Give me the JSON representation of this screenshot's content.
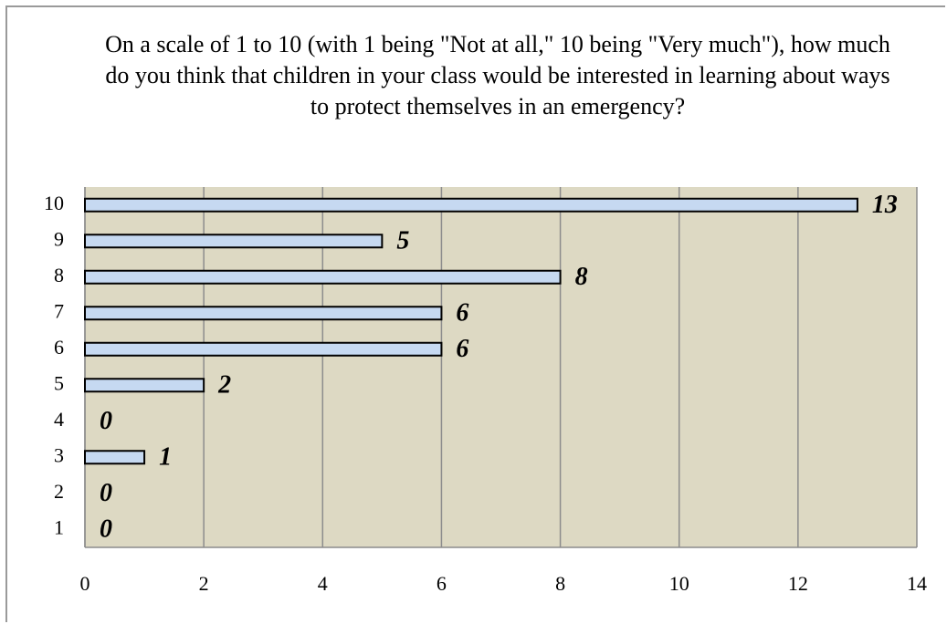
{
  "chart_data": {
    "type": "bar",
    "orientation": "horizontal",
    "title": "On a scale of 1 to 10 (with 1 being \"Not at all,\" 10 being \"Very much\"), how much do you think that children in your class would be interested in learning about ways to protect themselves in an emergency?",
    "categories": [
      "10",
      "9",
      "8",
      "7",
      "6",
      "5",
      "4",
      "3",
      "2",
      "1"
    ],
    "values": [
      13,
      5,
      8,
      6,
      6,
      2,
      0,
      1,
      0,
      0
    ],
    "color": "#c6d9f1",
    "xlim": [
      0,
      14
    ],
    "xticks": [
      0,
      2,
      4,
      6,
      8,
      10,
      12,
      14
    ],
    "grid": true
  }
}
